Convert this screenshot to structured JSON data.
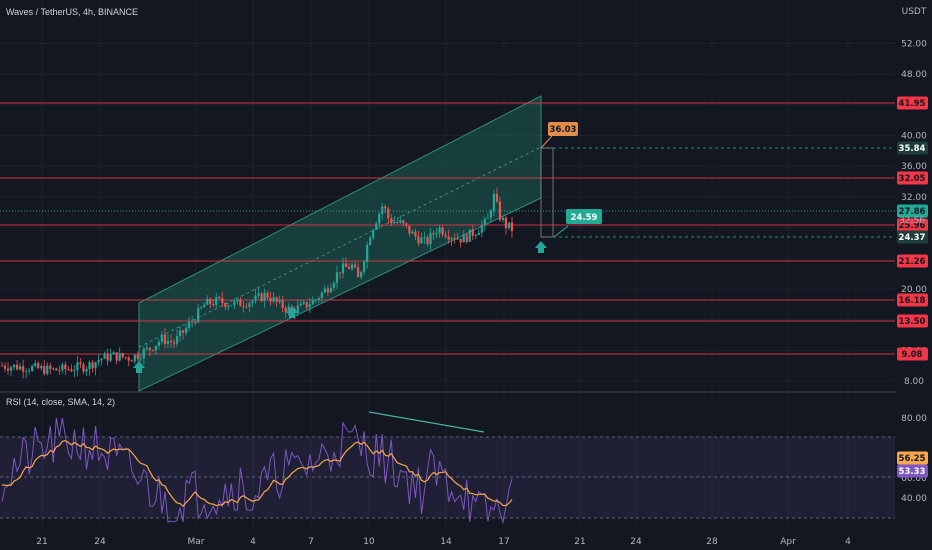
{
  "symbol_title": "Waves / TetherUS, 4h, BINANCE",
  "currency_label": "USDT",
  "rsi_title": "RSI (14, close, SMA, 14, 2)",
  "price_axis": {
    "ticks": [
      "52.00",
      "48.00",
      "44.00",
      "40.00",
      "36.00",
      "32.00",
      "28.00",
      "24.00",
      "20.00",
      "16.00",
      "12.00",
      "8.00"
    ]
  },
  "rsi_axis": {
    "ticks": [
      "80.00",
      "60.00",
      "40.00"
    ]
  },
  "time_axis": {
    "ticks": [
      "21",
      "24",
      "Mar",
      "4",
      "7",
      "10",
      "14",
      "17",
      "21",
      "24",
      "28",
      "Apr",
      "4"
    ]
  },
  "horizontal_levels": [
    {
      "label": "41.95",
      "color": "#f23645"
    },
    {
      "label": "32.05",
      "color": "#f23645"
    },
    {
      "label": "25.96",
      "color": "#f23645"
    },
    {
      "label": "21.26",
      "color": "#f23645"
    },
    {
      "label": "16.18",
      "color": "#f23645"
    },
    {
      "label": "13.50",
      "color": "#f23645"
    },
    {
      "label": "9.08",
      "color": "#f23645"
    }
  ],
  "dashed_levels": [
    {
      "label": "35.84",
      "color": "#089981"
    },
    {
      "label": "24.37",
      "color": "#089981"
    }
  ],
  "current_price": {
    "label": "27.86",
    "sub": "32:56",
    "color": "#22ab94"
  },
  "callouts": {
    "target_high": {
      "label": "36.03",
      "color": "#e08d4d"
    },
    "target_low": {
      "label": "24.59",
      "color": "#22ab94"
    }
  },
  "rsi_values": {
    "rsi": {
      "label": "56.25",
      "color": "#f7a74b"
    },
    "sma": {
      "label": "53.33",
      "color": "#7e57c2"
    }
  },
  "colors": {
    "background": "#131722",
    "channel_fill": "#1b5e52",
    "up_candle": "#26a69a",
    "down_candle": "#ef5350",
    "rsi_line": "#7e57c2",
    "rsi_sma": "#f7a74b",
    "divergence_line": "#4caf9f"
  },
  "chart_data": {
    "type": "candlestick",
    "title": "Waves / TetherUS, 4h, BINANCE",
    "ylim": [
      6,
      54
    ],
    "close_path": [
      [
        0,
        10.0
      ],
      [
        4,
        9.8
      ],
      [
        8,
        9.4
      ],
      [
        11,
        9.6
      ],
      [
        14,
        10.0
      ],
      [
        16,
        10.9
      ],
      [
        18,
        11.3
      ],
      [
        21,
        11.0
      ],
      [
        24,
        12.2
      ],
      [
        26,
        13.5
      ],
      [
        28,
        13.0
      ],
      [
        31,
        15.8
      ],
      [
        33,
        18.0
      ],
      [
        35,
        18.4
      ],
      [
        38,
        18.0
      ],
      [
        41,
        18.5
      ],
      [
        43,
        19.3
      ],
      [
        45,
        18.0
      ],
      [
        47,
        17.2
      ],
      [
        49,
        17.7
      ],
      [
        51,
        18.6
      ],
      [
        53,
        20.2
      ],
      [
        55,
        22.5
      ],
      [
        57,
        23.0
      ],
      [
        58,
        21.2
      ],
      [
        60,
        27.5
      ],
      [
        62,
        31.0
      ],
      [
        63,
        29.0
      ],
      [
        65,
        28.5
      ],
      [
        67,
        27.0
      ],
      [
        69,
        26.0
      ],
      [
        71,
        28.0
      ],
      [
        73,
        27.0
      ],
      [
        75,
        26.5
      ],
      [
        77,
        27.5
      ],
      [
        79,
        28.8
      ],
      [
        80,
        32.2
      ],
      [
        81,
        29.5
      ],
      [
        82,
        28.3
      ],
      [
        83,
        27.8
      ]
    ],
    "rsi_ylim": [
      25,
      95
    ],
    "rsi_last": 56.25,
    "rsi_sma_last": 53.33
  }
}
